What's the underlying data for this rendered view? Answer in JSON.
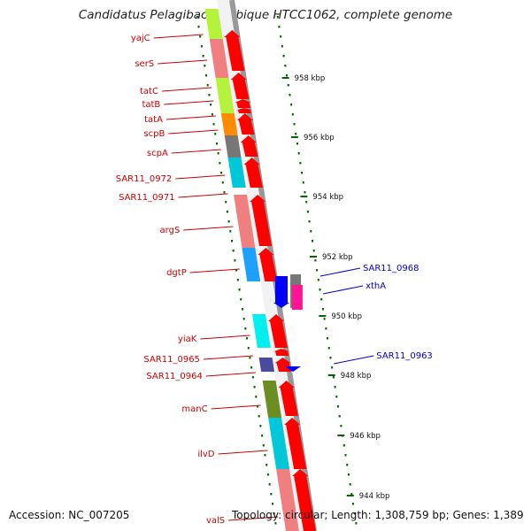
{
  "title": "Candidatus Pelagibacter ubique HTCC1062, complete genome",
  "footer": {
    "accession": "Accession: NC_007205",
    "topology": "Topology: circular; Length: 1,308,759 bp; Genes: 1,389"
  },
  "ticks": [
    "958 kbp",
    "956 kbp",
    "954 kbp",
    "952 kbp",
    "950 kbp",
    "948 kbp",
    "946 kbp",
    "944 kbp"
  ],
  "genes_left": [
    "yajC",
    "serS",
    "tatC",
    "tatB",
    "tatA",
    "scpB",
    "scpA",
    "SAR11_0972",
    "SAR11_0971",
    "argS",
    "dgtP",
    "yiaK",
    "SAR11_0965",
    "SAR11_0964",
    "manC",
    "ilvD",
    "valS"
  ],
  "genes_right": [
    "SAR11_0968",
    "xthA",
    "SAR11_0963"
  ],
  "colors": {
    "forward_arrow": "#ff0000",
    "reverse_arrow": "#0000ff",
    "label_forward": "#cc0000",
    "label_reverse": "#0000cc",
    "backbone": "#888888",
    "tick_mark": "#006600"
  }
}
